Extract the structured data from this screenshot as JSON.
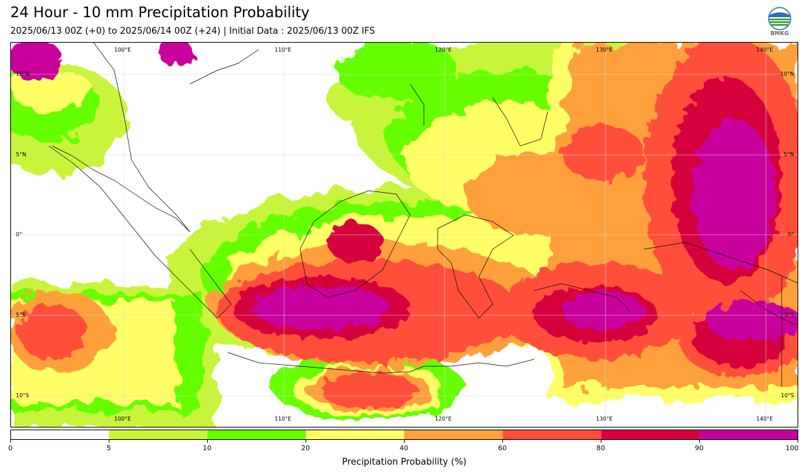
{
  "header": {
    "title": "24 Hour - 10 mm Precipitation Probability",
    "subtitle": "2025/06/13 00Z (+0) to 2025/06/14 00Z (+24) | Initial Data : 2025/06/13 00Z IFS",
    "logo_text": "BMKG"
  },
  "map": {
    "lon_labels": [
      "100°E",
      "110°E",
      "120°E",
      "130°E",
      "140°E"
    ],
    "lat_labels": [
      "10°N",
      "5°N",
      "0°",
      "5°S",
      "10°S"
    ]
  },
  "colorbar": {
    "label": "Precipitation Probability (%)",
    "levels": [
      "0",
      "5",
      "10",
      "20",
      "40",
      "60",
      "80",
      "90",
      "100"
    ],
    "colors": [
      "#ffffff",
      "#c8f53a",
      "#66ff00",
      "#ffff66",
      "#ffa03c",
      "#ff4f3a",
      "#d6003c",
      "#c8009c"
    ]
  }
}
